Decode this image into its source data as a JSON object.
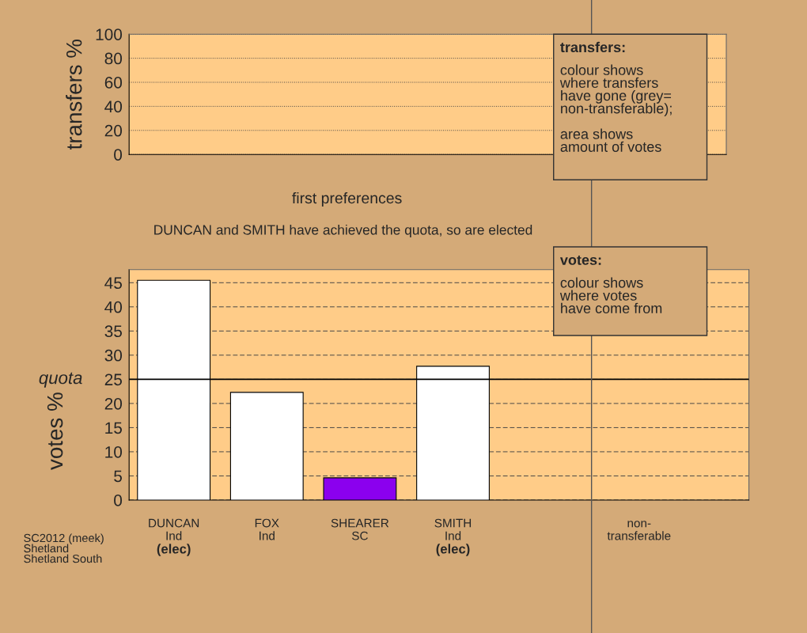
{
  "chart_data": [
    {
      "type": "bar",
      "ylabel": "transfers %",
      "categories": [
        null,
        null,
        null,
        null,
        null,
        null
      ],
      "values": [
        null,
        null,
        null,
        null,
        null,
        null
      ],
      "ylim": [
        0,
        100
      ],
      "yticks": [
        0,
        20,
        40,
        60,
        80,
        100
      ],
      "grid": "y",
      "tick_labels": "y",
      "annotations": [
        "transfers:\ncolour shows\nwhere transfers\nhave gone (grey=\nnon-transferable);\n\narea shows\namount of votes"
      ]
    },
    {
      "type": "bar",
      "title": "first preferences",
      "subtitle": "DUNCAN and SMITH have achieved the quota, so are elected",
      "ylabel": "votes %",
      "categories": [
        "DUNCAN\nInd\n(elec)",
        "FOX\nInd",
        "SHEARER\nSC",
        "SMITH\nInd\n(elec)",
        null,
        "non-\ntransferable"
      ],
      "values": [
        45.5,
        22.3,
        4.6,
        27.7,
        null,
        null
      ],
      "colors": [
        "#ffffff",
        "#ffffff",
        "#8b00ee",
        "#ffffff",
        "#ffffff",
        "#ffffff"
      ],
      "ylim": [
        0,
        47.7
      ],
      "yticks": [
        0,
        5,
        10,
        15,
        20,
        25,
        30,
        35,
        40,
        45
      ],
      "grid": "y",
      "ref_lines": [
        {
          "axis": "y",
          "value": 25,
          "label": "quota",
          "color": "#000000"
        }
      ],
      "annotations": [
        "votes:\ncolour shows\nwhere votes\nhave come from",
        "SC2012 (meek)\nShetland\nShetland South"
      ]
    }
  ]
}
